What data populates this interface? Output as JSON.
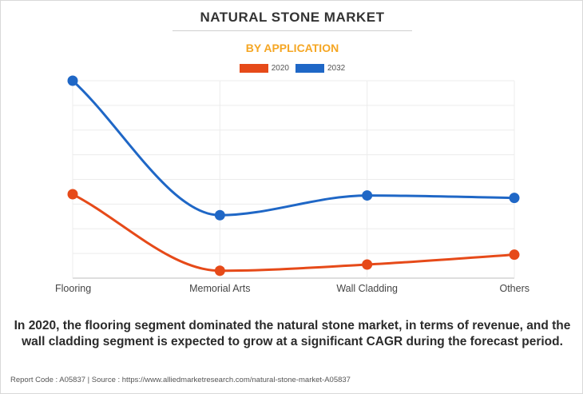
{
  "chart_data": {
    "type": "line",
    "title": "NATURAL STONE MARKET",
    "subtitle": "BY APPLICATION",
    "categories": [
      "Flooring",
      "Memorial Arts",
      "Wall Cladding",
      "Others"
    ],
    "series": [
      {
        "name": "2020",
        "color": "#e64a19",
        "values": [
          34.0,
          3.0,
          5.5,
          9.5
        ]
      },
      {
        "name": "2032",
        "color": "#1f67c6",
        "values": [
          80.0,
          25.5,
          33.5,
          32.5
        ]
      }
    ],
    "ylim": [
      0,
      80
    ],
    "grid": true,
    "legend_position": "top-center",
    "xlabel": "",
    "ylabel": ""
  },
  "summary": "In 2020, the flooring segment dominated the natural stone market, in terms of revenue, and the wall cladding segment is expected to grow at a significant CAGR during the forecast period.",
  "footer": "Report Code : A05837  |  Source : https://www.alliedmarketresearch.com/natural-stone-market-A05837"
}
